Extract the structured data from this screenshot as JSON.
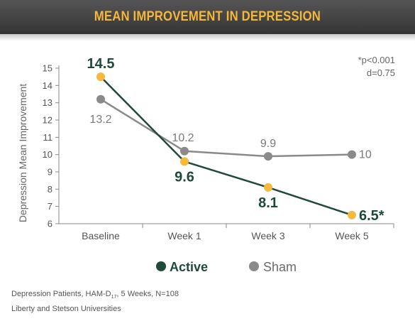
{
  "title": "MEAN IMPROVEMENT IN DEPRESSION",
  "stats": {
    "line1": "*p<0.001",
    "line2": "d=0.75"
  },
  "colors": {
    "active": "#1f4a3a",
    "sham": "#8a8a8a",
    "marker_active": "#f5b93d",
    "marker_sham": "#8a8a8a",
    "title": "#f5b73a",
    "axis": "#888888"
  },
  "footer": {
    "line1_prefix": "Depression Patients, HAM-D",
    "line1_sub": "17",
    "line1_suffix": ", 5 Weeks, N=108",
    "line2": "Liberty and Stetson Universities"
  },
  "chart_data": {
    "type": "line",
    "categories": [
      "Baseline",
      "Week 1",
      "Week 3",
      "Week 5"
    ],
    "ylabel": "Depression Mean Improvement",
    "xlabel": "",
    "ylim": [
      6,
      15
    ],
    "yticks": [
      6,
      7,
      8,
      9,
      10,
      11,
      12,
      13,
      14,
      15
    ],
    "grid": false,
    "legend_position": "bottom",
    "series": [
      {
        "name": "Active",
        "values": [
          14.5,
          9.6,
          8.1,
          6.5
        ],
        "labels": [
          "14.5",
          "9.6",
          "8.1",
          "6.5*"
        ]
      },
      {
        "name": "Sham",
        "values": [
          13.2,
          10.2,
          9.9,
          10
        ],
        "labels": [
          "13.2",
          "10.2",
          "9.9",
          "10"
        ]
      }
    ]
  }
}
